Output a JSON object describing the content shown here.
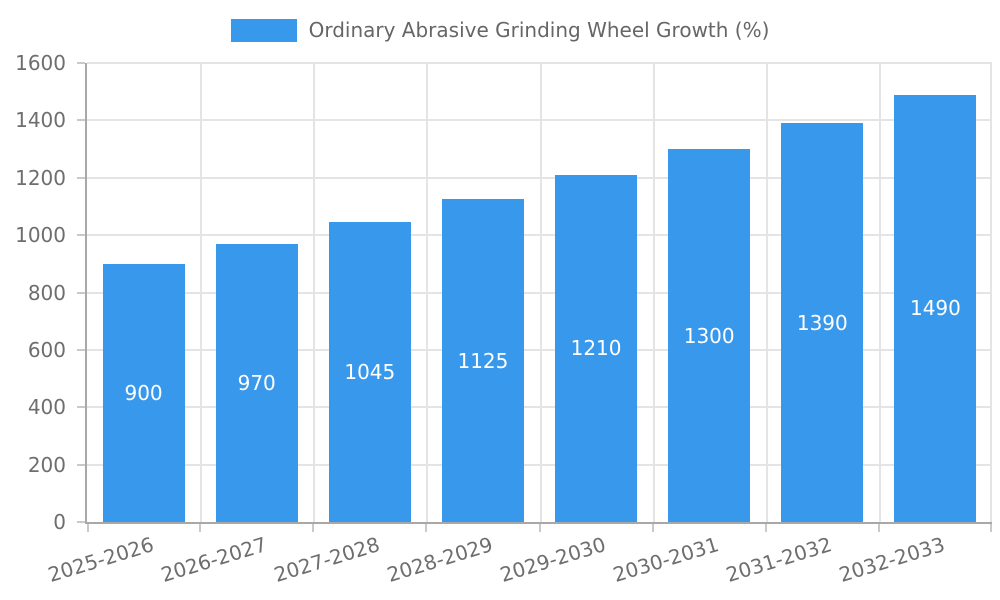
{
  "legend": {
    "label": "Ordinary Abrasive Grinding Wheel Growth (%)"
  },
  "colors": {
    "background": "#ffffff",
    "bar": "#3898EC",
    "grid": "#e4e4e4",
    "axis": "#a8a8a8",
    "tick_mark": "#c9c9c9",
    "axis_text": "#6e6e6e",
    "legend_text": "#666666",
    "value_text": "#ffffff"
  },
  "chart_data": {
    "type": "bar",
    "categories": [
      "2025-2026",
      "2026-2027",
      "2027-2028",
      "2028-2029",
      "2029-2030",
      "2030-2031",
      "2031-2032",
      "2032-2033"
    ],
    "values": [
      900,
      970,
      1045,
      1125,
      1210,
      1300,
      1390,
      1490
    ],
    "series": [
      {
        "name": "Ordinary Abrasive Grinding Wheel Growth (%)",
        "values": [
          900,
          970,
          1045,
          1125,
          1210,
          1300,
          1390,
          1490
        ]
      }
    ],
    "title": "",
    "xlabel": "",
    "ylabel": "",
    "ylim": [
      0,
      1600
    ],
    "ytick_step": 200,
    "yticks": [
      0,
      200,
      400,
      600,
      800,
      1000,
      1200,
      1400,
      1600
    ],
    "legend_entries": [
      "Ordinary Abrasive Grinding Wheel Growth (%)"
    ],
    "legend_position": "top",
    "grid": true,
    "value_labels": "inside-center",
    "x_tick_rotation_deg": -17
  }
}
